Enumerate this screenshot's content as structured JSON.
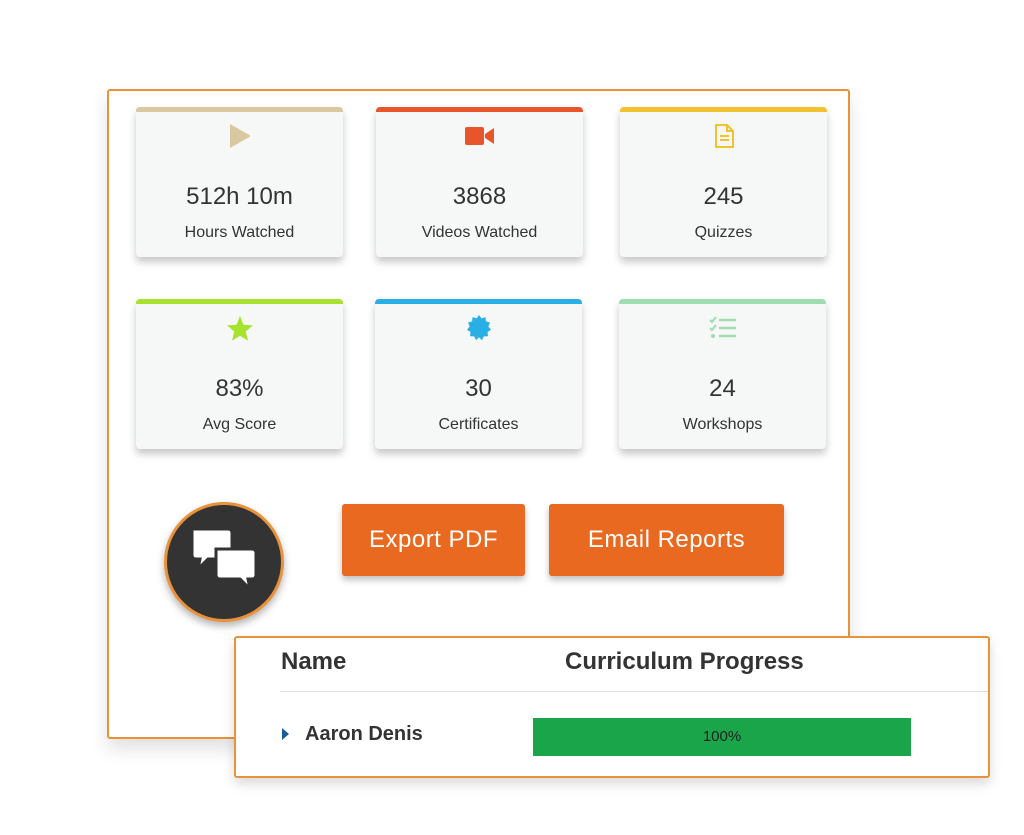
{
  "stats": [
    {
      "value": "512h 10m",
      "label": "Hours Watched",
      "icon": "play-icon",
      "color": "#d9c8a0"
    },
    {
      "value": "3868",
      "label": "Videos Watched",
      "icon": "video-camera-icon",
      "color": "#e8552a"
    },
    {
      "value": "245",
      "label": "Quizzes",
      "icon": "document-icon",
      "color": "#f2c12e"
    },
    {
      "value": "83%",
      "label": "Avg Score",
      "icon": "star-icon",
      "color": "#a6e22e"
    },
    {
      "value": "30",
      "label": "Certificates",
      "icon": "badge-icon",
      "color": "#2aaee6"
    },
    {
      "value": "24",
      "label": "Workshops",
      "icon": "checklist-icon",
      "color": "#9fdcb0"
    }
  ],
  "actions": {
    "export_pdf": "Export PDF",
    "email_reports": "Email Reports"
  },
  "chat": {
    "icon": "chat-bubbles-icon"
  },
  "table": {
    "headers": {
      "name": "Name",
      "progress": "Curriculum Progress"
    },
    "rows": [
      {
        "name": "Aaron Denis",
        "progress_text": "100%",
        "progress": 1.0
      }
    ]
  },
  "colors": {
    "accent": "#e8923a",
    "button": "#e8691f",
    "progress": "#1aa54a"
  }
}
